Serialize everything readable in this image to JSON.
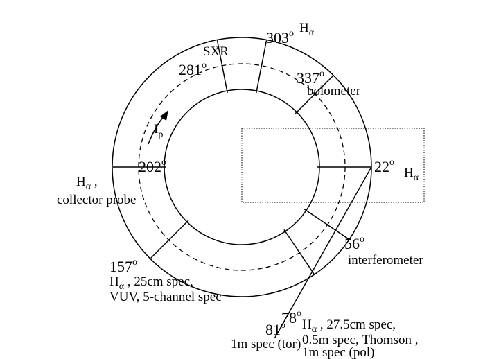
{
  "diagram": {
    "ip": {
      "symbol": "I",
      "subscript": "p"
    },
    "degree": "o",
    "h": "H",
    "alpha": "α",
    "ports": [
      {
        "angle": "281",
        "notes": [
          "SXR"
        ]
      },
      {
        "angle": "303"
      },
      {
        "angle": "337",
        "notes": [
          "bolometer"
        ]
      },
      {
        "angle": "22"
      },
      {
        "angle": "56",
        "notes": [
          "interferometer"
        ]
      },
      {
        "angle": "78",
        "notes": [
          " , 27.5cm spec,",
          "0.5m spec, Thomson ,",
          "1m spec (pol)"
        ]
      },
      {
        "angle": "81",
        "notes": [
          "1m spec (tor)"
        ]
      },
      {
        "angle": "157",
        "notes": [
          " , 25cm spec,",
          "VUV, 5-channel spec"
        ]
      },
      {
        "angle": "202",
        "notes": [
          " ,",
          "collector probe"
        ]
      }
    ]
  }
}
